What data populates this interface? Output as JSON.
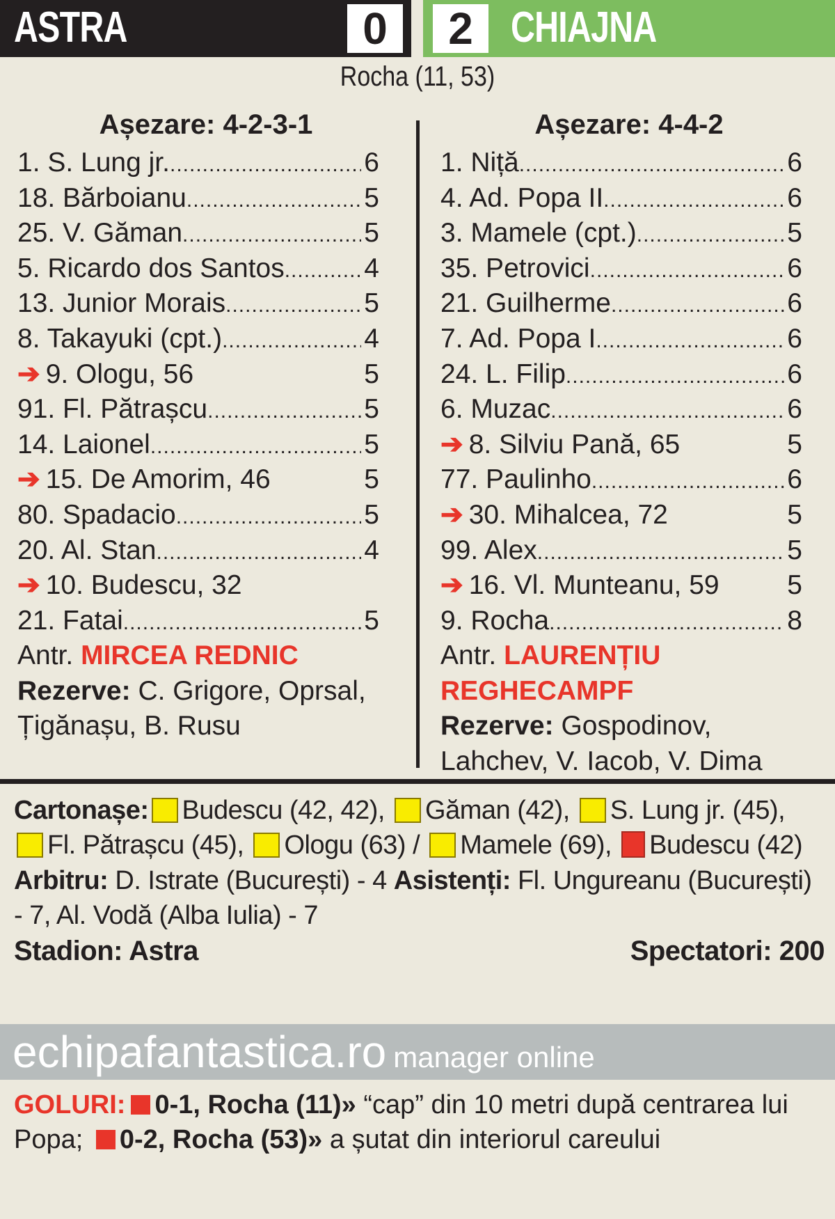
{
  "header": {
    "home_team": "ASTRA",
    "home_score": "0",
    "away_score": "2",
    "away_team": "CHIAJNA",
    "scorers": "Rocha (11, 53)"
  },
  "colors": {
    "home": "#231f20",
    "away": "#7dbd5f",
    "accent": "#e8352a",
    "yellow_card": "#f9ec00",
    "red_card": "#e8352a"
  },
  "home": {
    "formation": "Așezare: 4-2-3-1",
    "players": [
      {
        "name": "1. S. Lung jr.",
        "rating": "6"
      },
      {
        "name": "18. Bărboianu",
        "rating": "5"
      },
      {
        "name": "25. V. Găman",
        "rating": "5"
      },
      {
        "name": "5. Ricardo dos Santos",
        "rating": "4"
      },
      {
        "name": "13. Junior Morais",
        "rating": "5"
      },
      {
        "name": "8. Takayuki (cpt.)",
        "rating": "4"
      },
      {
        "name": "9. Ologu, 56",
        "rating": "5",
        "sub": true
      },
      {
        "name": "91. Fl. Pătrașcu",
        "rating": "5"
      },
      {
        "name": "14. Laionel",
        "rating": "5"
      },
      {
        "name": "15. De Amorim, 46",
        "rating": "5",
        "sub": true
      },
      {
        "name": "80. Spadacio",
        "rating": "5"
      },
      {
        "name": "20. Al. Stan",
        "rating": "4"
      },
      {
        "name": "10. Budescu, 32",
        "rating": "",
        "sub": true
      },
      {
        "name": "21. Fatai",
        "rating": "5"
      }
    ],
    "coach_label": "Antr.",
    "coach": "MIRCEA REDNIC",
    "reserves_label": "Rezerve:",
    "reserves": "C. Grigore, Oprsal,  Țigănașu, B. Rusu"
  },
  "away": {
    "formation": "Așezare: 4-4-2",
    "players": [
      {
        "name": "1. Niță",
        "rating": "6"
      },
      {
        "name": "4. Ad. Popa II",
        "rating": "6"
      },
      {
        "name": "3. Mamele (cpt.)",
        "rating": "5"
      },
      {
        "name": "35. Petrovici",
        "rating": "6"
      },
      {
        "name": "21. Guilherme",
        "rating": "6"
      },
      {
        "name": "7. Ad. Popa I",
        "rating": "6"
      },
      {
        "name": "24. L. Filip",
        "rating": "6"
      },
      {
        "name": "6. Muzac",
        "rating": "6"
      },
      {
        "name": "8. Silviu Pană, 65",
        "rating": "5",
        "sub": true
      },
      {
        "name": "77. Paulinho",
        "rating": "6"
      },
      {
        "name": "30. Mihalcea, 72",
        "rating": "5",
        "sub": true
      },
      {
        "name": "99. Alex",
        "rating": "5"
      },
      {
        "name": "16. Vl. Munteanu, 59",
        "rating": "5",
        "sub": true
      },
      {
        "name": "9. Rocha",
        "rating": "8"
      }
    ],
    "coach_label": "Antr.",
    "coach": "LAURENȚIU REGHECAMPF",
    "reserves_label": "Rezerve:",
    "reserves": "Gospodinov, Lahchev, V. Iacob, V. Dima"
  },
  "cards": {
    "label": "Cartonașe:",
    "items": [
      {
        "type": "yellow",
        "text": "Budescu (42, 42),"
      },
      {
        "type": "yellow",
        "text": "Găman (42),"
      },
      {
        "type": "yellow",
        "text": "S. Lung jr. (45),"
      },
      {
        "type": "yellow",
        "text": "Fl. Pătrașcu (45),"
      },
      {
        "type": "yellow",
        "text": "Ologu (63) /"
      },
      {
        "type": "yellow",
        "text": "Mamele (69),"
      },
      {
        "type": "red",
        "text": "Budescu (42)"
      }
    ]
  },
  "referee": {
    "label": "Arbitru:",
    "text": "D. Istrate (București) - 4",
    "assist_label": "Asistenți:",
    "assist_text": "Fl. Ungureanu (București) - 7, Al. Vodă (Alba Iulia) - 7"
  },
  "stadium": {
    "label": "Stadion:",
    "value": "Astra"
  },
  "spectators": {
    "label": "Spectatori:",
    "value": "200"
  },
  "brand": {
    "site": "echipafantastica.ro",
    "tagline": "manager online"
  },
  "goals": {
    "label": "GOLURI:",
    "items": [
      {
        "score": "0-1, Rocha (11)»",
        "text": " “cap” din 10 metri după centrarea lui Popa;"
      },
      {
        "score": "0-2, Rocha (53)»",
        "text": " a șutat din interiorul careului"
      }
    ]
  }
}
